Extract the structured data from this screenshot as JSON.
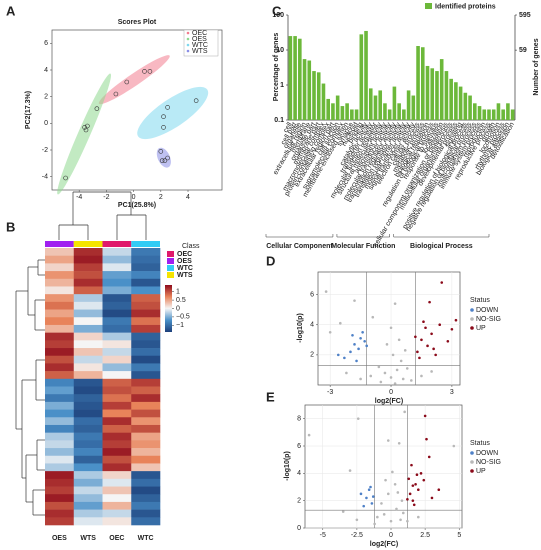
{
  "chart_data": [
    {
      "type": "scatter",
      "panel": "A",
      "title": "Scores Plot",
      "x_label": "PC1(25.8%)",
      "y_label": "PC2(17.3%)",
      "xlim": [
        -6,
        6.5
      ],
      "ylim": [
        -5,
        7
      ],
      "xticks": [
        -4,
        -2,
        0,
        2,
        4
      ],
      "yticks": [
        -4,
        -2,
        0,
        2,
        4,
        6
      ],
      "ellipses": true,
      "series": [
        {
          "name": "OEC",
          "color": "#f27d8f",
          "x": [
            -1.3,
            -0.5,
            0.8,
            1.2
          ],
          "values": [
            2.2,
            3.1,
            3.9,
            3.9
          ]
        },
        {
          "name": "OES",
          "color": "#8fd98f",
          "x": [
            -5,
            -3.6,
            -3.4,
            -3.5,
            -2.7
          ],
          "values": [
            -4.1,
            -0.3,
            -0.2,
            -0.5,
            1.1
          ]
        },
        {
          "name": "WTC",
          "color": "#7fd8ee",
          "x": [
            2.2,
            2.5,
            4.6,
            2.2
          ],
          "values": [
            0.5,
            1.2,
            1.7,
            -0.3
          ]
        },
        {
          "name": "WTS",
          "color": "#8a8ee6",
          "x": [
            2,
            2.3,
            2.5,
            2.1
          ],
          "values": [
            -2.1,
            -2.8,
            -2.6,
            -2.8
          ]
        }
      ]
    },
    {
      "type": "heatmap",
      "panel": "B",
      "legend_title": "Class",
      "columns": [
        "OES",
        "WTS",
        "OEC",
        "WTC"
      ],
      "classes": [
        {
          "name": "OEC",
          "color": "#e0196b"
        },
        {
          "name": "OES",
          "color": "#a020f0"
        },
        {
          "name": "WTC",
          "color": "#33ccf5"
        },
        {
          "name": "WTS",
          "color": "#f5e400"
        }
      ],
      "colorlim": [
        -1.4,
        1.4
      ],
      "colorticks": [
        1,
        0.5,
        0,
        {
          "value": -0.5,
          "label": "−0.5"
        },
        {
          "value": -1,
          "label": "−1"
        }
      ],
      "values": [
        [
          0.3,
          1.2,
          -0.2,
          -0.9
        ],
        [
          0.5,
          1.3,
          -0.4,
          -1.0
        ],
        [
          0.2,
          1.1,
          -0.1,
          -1.1
        ],
        [
          0.6,
          1.0,
          -0.6,
          -0.8
        ],
        [
          0.4,
          1.2,
          -0.7,
          -1.2
        ],
        [
          0.1,
          0.9,
          -0.5,
          -0.7
        ],
        [
          0.6,
          -0.3,
          -1.2,
          0.9
        ],
        [
          0.8,
          -0.1,
          -1.1,
          1.0
        ],
        [
          0.5,
          -0.4,
          -1.3,
          1.2
        ],
        [
          0.7,
          0.0,
          -0.9,
          0.8
        ],
        [
          0.4,
          -0.5,
          -1.0,
          1.1
        ],
        [
          1.2,
          0.2,
          -0.3,
          -1.1
        ],
        [
          1.1,
          0.0,
          0.1,
          -1.2
        ],
        [
          1.3,
          0.3,
          -0.2,
          -1.0
        ],
        [
          1.0,
          -0.2,
          0.2,
          -1.3
        ],
        [
          1.2,
          0.1,
          -0.4,
          -0.9
        ],
        [
          0.9,
          0.4,
          0.0,
          -1.2
        ],
        [
          -0.8,
          -1.2,
          0.9,
          1.1
        ],
        [
          -0.6,
          -1.3,
          1.0,
          0.9
        ],
        [
          -0.9,
          -1.1,
          0.8,
          1.2
        ],
        [
          -0.5,
          -1.2,
          1.1,
          0.7
        ],
        [
          -0.7,
          -1.3,
          0.7,
          1.0
        ],
        [
          -0.4,
          -1.0,
          1.2,
          0.6
        ],
        [
          -0.8,
          -1.1,
          0.9,
          1.0
        ],
        [
          -0.3,
          -0.9,
          1.2,
          0.5
        ],
        [
          -0.2,
          -1.0,
          1.1,
          0.6
        ],
        [
          -0.4,
          -0.8,
          1.3,
          0.4
        ],
        [
          -0.1,
          -1.1,
          1.0,
          0.7
        ],
        [
          -0.3,
          -0.7,
          1.2,
          0.3
        ],
        [
          1.3,
          -0.3,
          0.2,
          -1.2
        ],
        [
          1.2,
          -0.5,
          -0.1,
          -1.0
        ],
        [
          1.1,
          -0.2,
          0.3,
          -1.3
        ],
        [
          1.3,
          -0.4,
          0.0,
          -1.1
        ],
        [
          1.0,
          -0.6,
          0.4,
          -0.9
        ],
        [
          1.2,
          -0.3,
          -0.2,
          -1.2
        ],
        [
          1.1,
          -0.1,
          0.1,
          -1.0
        ]
      ]
    },
    {
      "type": "bar",
      "panel": "C",
      "series_name": "Identified proteins",
      "color": "#6cb83a",
      "y_label": "Percentage of genes",
      "y2_label": "Number of genes",
      "log_scale": true,
      "ylim": [
        0.1,
        100
      ],
      "yticks": [
        0.1,
        1,
        10,
        100
      ],
      "y2lim": [
        0.595,
        595
      ],
      "y2ticks": [
        59,
        595
      ],
      "groups": [
        {
          "name": "Cellular Component",
          "categories": [
            "cell",
            "cell part",
            "organelle",
            "extracellular region",
            "membrane",
            "organelle part",
            "membrane part",
            "macromolecular complex",
            "protein-containing complex",
            "extracellular region part",
            "cell junction",
            "supramolecular complex",
            "membrane-enclosed lumen",
            "synapse",
            "nucleoid"
          ],
          "values": [
            25,
            25,
            21,
            5.5,
            5,
            2.5,
            2.3,
            1.1,
            0.4,
            0.3,
            0.5,
            0.25,
            0.3,
            0.2,
            0.2
          ]
        },
        {
          "name": "Molecular Function",
          "categories": [
            "binding",
            "catalytic activity",
            "transporter activity",
            "molecular function regulator",
            "structural molecule activity",
            "antioxidant activity",
            "molecular transducer activity",
            "transcription regulator activity",
            "translation regulator activity",
            "molecular carrier activity",
            "signal transducer activity",
            "electron carrier activity"
          ],
          "values": [
            28,
            35,
            0.8,
            0.5,
            0.7,
            0.3,
            0.2,
            0.9,
            0.3,
            0.2,
            0.7,
            0.5
          ]
        },
        {
          "name": "Biological Process",
          "categories": [
            "cellular process",
            "metabolic process",
            "biological regulation",
            "regulation of biological process",
            "response to stimulus",
            "localization",
            "cellular component organization or biogenesis",
            "multicellular organismal process",
            "developmental process",
            "signaling",
            "positive regulation of biological process",
            "negative regulation of biological process",
            "multi-organism process",
            "immune system process",
            "reproduction",
            "reproductive process",
            "growth",
            "locomotion",
            "rhythmic process",
            "biological adhesion",
            "detoxification"
          ],
          "values": [
            13,
            12,
            3.5,
            3,
            2.5,
            5.5,
            2.5,
            1.5,
            1.2,
            0.9,
            0.6,
            0.5,
            0.3,
            0.25,
            0.2,
            0.2,
            0.2,
            0.3,
            0.2,
            0.3,
            0.2
          ]
        }
      ]
    },
    {
      "type": "scatter",
      "panel": "D",
      "x_label": "log2(FC)",
      "y_label": "-log10(p)",
      "legend_title": "Status",
      "grid": true,
      "xlim": [
        -3.6,
        3.4
      ],
      "ylim": [
        0,
        7.5
      ],
      "xticks": [
        -3,
        0,
        3
      ],
      "yticks": [
        2,
        4,
        6
      ],
      "hline": 1.3,
      "vlines": [
        -1.2,
        1.2
      ],
      "series": [
        {
          "name": "DOWN",
          "color": "#4f81c7",
          "x": [
            -1.8,
            -1.5,
            -2,
            -1.3,
            -1.6,
            -2.3,
            -1.4,
            -1.7,
            -1.2,
            -2.6,
            -1.9
          ],
          "values": [
            2.7,
            3.1,
            2.2,
            2.9,
            2.4,
            1.8,
            3.5,
            1.6,
            2.6,
            2.0,
            3.3
          ]
        },
        {
          "name": "NO-SIG",
          "color": "#b8b8b8",
          "x": [
            -3.2,
            -1.8,
            0.2,
            -0.9,
            0,
            0.3,
            -0.3,
            0.6,
            -0.6,
            0.1,
            0.8,
            -1,
            1,
            0.4,
            -0.2,
            0.5,
            -2.2,
            2.0,
            -2.5,
            -3,
            0.0,
            0.7,
            -0.5,
            0.2,
            1.5,
            -1.5
          ],
          "values": [
            6.2,
            5.6,
            5.4,
            4.5,
            0.5,
            1.0,
            0.8,
            0.4,
            1.2,
            2.0,
            1.1,
            0.6,
            0.3,
            3.0,
            2.7,
            1.6,
            0.8,
            0.9,
            4.1,
            3.5,
            3.8,
            2.3,
            0.2,
            0.1,
            0.6,
            0.4
          ]
        },
        {
          "name": "UP",
          "color": "#8b0a1a",
          "x": [
            1.5,
            1.8,
            2.0,
            1.3,
            2.4,
            3.0,
            1.6,
            2.2,
            1.4,
            2.8,
            1.9,
            2.5,
            1.7,
            3.2,
            1.2,
            2.1
          ],
          "values": [
            3.0,
            2.6,
            3.4,
            2.2,
            4.0,
            3.7,
            4.2,
            2.0,
            1.8,
            2.9,
            5.5,
            6.8,
            3.8,
            4.3,
            3.2,
            2.4
          ]
        }
      ]
    },
    {
      "type": "scatter",
      "panel": "E",
      "x_label": "log2(FC)",
      "y_label": "-log10(p)",
      "legend_title": "Status",
      "grid": true,
      "xlim": [
        -6.3,
        5.2
      ],
      "ylim": [
        0,
        9
      ],
      "xticks": [
        -5,
        -2.5,
        0,
        2.5,
        5
      ],
      "yticks": [
        0,
        2,
        4,
        6,
        8
      ],
      "hline": 1.3,
      "vlines": [
        -1.2,
        1.2
      ],
      "series": [
        {
          "name": "DOWN",
          "color": "#4f81c7",
          "x": [
            -1.8,
            -1.5,
            -2.2,
            -1.4,
            -1.6,
            -2.0,
            -1.3
          ],
          "values": [
            2.2,
            3.0,
            2.5,
            1.8,
            2.8,
            1.6,
            2.3
          ]
        },
        {
          "name": "NO-SIG",
          "color": "#b8b8b8",
          "x": [
            -6,
            -2.4,
            -3,
            -0.2,
            0.6,
            1.0,
            4.6,
            -0.5,
            0,
            0.4,
            -1,
            0.8,
            -0.2,
            0.3,
            0.7,
            -0.7,
            0.1,
            -1.2,
            1.2,
            2.0,
            -2.5,
            0.5,
            -0.4,
            0.9,
            -3.5
          ],
          "values": [
            6.8,
            8.0,
            4.2,
            6.4,
            6.2,
            8.5,
            6.0,
            1.0,
            0.5,
            1.4,
            0.8,
            2.0,
            2.5,
            3.2,
            0.6,
            1.8,
            4.1,
            0.3,
            0.5,
            0.8,
            0.6,
            2.6,
            3.5,
            1.1,
            1.2
          ]
        },
        {
          "name": "UP",
          "color": "#8b0a1a",
          "x": [
            1.4,
            1.8,
            2.2,
            1.6,
            2.6,
            1.3,
            2.0,
            3.0,
            1.5,
            2.4,
            1.7,
            2.8,
            1.9,
            3.5,
            2.5,
            1.2,
            1.6
          ],
          "values": [
            2.5,
            3.2,
            4.0,
            2.0,
            6.5,
            3.6,
            2.8,
            2.2,
            4.6,
            3.5,
            1.7,
            5.2,
            3.9,
            2.8,
            8.2,
            2.1,
            3.1
          ]
        }
      ]
    }
  ]
}
